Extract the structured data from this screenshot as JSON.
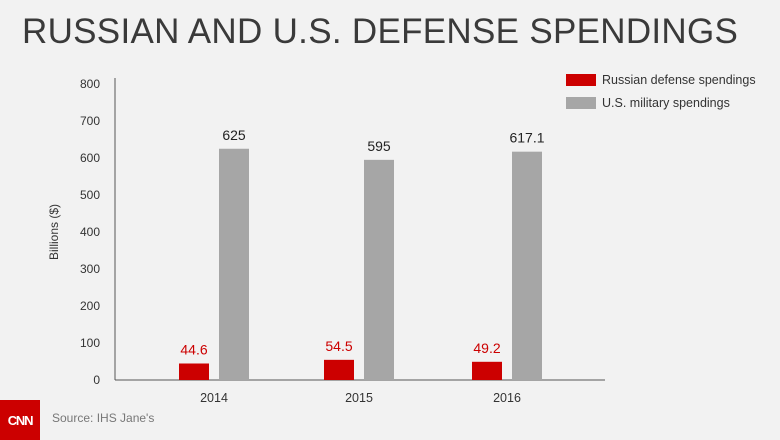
{
  "title": "RUSSIAN AND U.S. DEFENSE SPENDINGS",
  "source": "Source: IHS Jane's",
  "logo_text": "CNN",
  "colors": {
    "russia": "#cc0000",
    "us": "#a6a6a6",
    "accent": "#cc0000"
  },
  "chart_data": {
    "type": "bar",
    "categories": [
      "2014",
      "2015",
      "2016"
    ],
    "series": [
      {
        "name": "Russian defense spendings",
        "values": [
          44.6,
          54.5,
          49.2
        ],
        "labels": [
          "44.6",
          "54.5",
          "49.2"
        ]
      },
      {
        "name": "U.S. military spendings",
        "values": [
          625,
          595,
          617.1
        ],
        "labels": [
          "625",
          "595",
          "617.1"
        ]
      }
    ],
    "ylabel": "Billions ($)",
    "xlabel": "",
    "ylim": [
      0,
      800
    ],
    "yticks": [
      "0",
      "100",
      "200",
      "300",
      "400",
      "500",
      "600",
      "700",
      "800"
    ],
    "legend": "top-right",
    "grid": false
  }
}
